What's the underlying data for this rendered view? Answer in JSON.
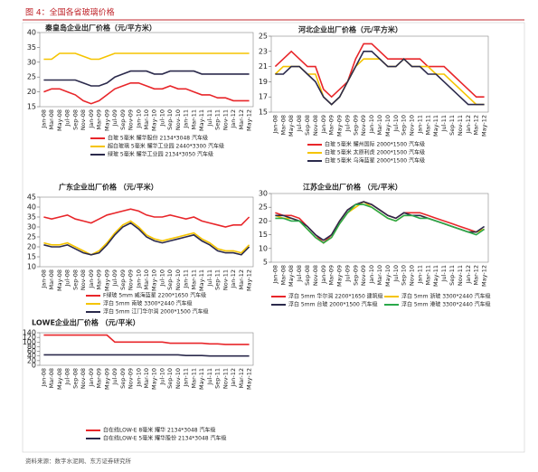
{
  "header": {
    "title": "图 4：全国各省玻璃价格"
  },
  "source": "资料来源：数字水泥网、东方证券研究所",
  "chart_data": [
    {
      "type": "line",
      "title": "秦皇岛企业出厂价格（元/平方米）",
      "categories": [
        "Jan-08",
        "Mar-08",
        "May-08",
        "Jul-08",
        "Sep-08",
        "Nov-08",
        "Jan-09",
        "Mar-09",
        "May-09",
        "Jul-09",
        "Sep-09",
        "Nov-09",
        "Jan-10",
        "Mar-10",
        "May-10",
        "Jul-10",
        "Sep-10",
        "Nov-10",
        "Jan-11",
        "Mar-11",
        "May-11",
        "Jul-11",
        "Sep-11",
        "Nov-11",
        "Jan-12",
        "Mar-12",
        "May-12"
      ],
      "ylim": [
        15,
        40
      ],
      "yticks": [
        15,
        20,
        25,
        30,
        35,
        40
      ],
      "series": [
        {
          "name": "白玻 5毫米 耀华股份 2134*3048 汽车级",
          "color": "#e8262a",
          "values": [
            20,
            21,
            21,
            20,
            19,
            17,
            16,
            17,
            19,
            21,
            22,
            23,
            23,
            22,
            21,
            21,
            22,
            21,
            21,
            20,
            19,
            19,
            18,
            18,
            17,
            17,
            17
          ]
        },
        {
          "name": "超白玻璃 5毫米 耀华工业园 2440*3300 汽车级",
          "color": "#f5c400",
          "values": [
            31,
            31,
            33,
            33,
            33,
            32,
            31,
            31,
            32,
            33,
            33,
            33,
            33,
            33,
            33,
            33,
            33,
            33,
            33,
            33,
            33,
            33,
            33,
            33,
            33,
            33,
            33
          ]
        },
        {
          "name": "绿玻 5毫米 耀华工业园 2134*3050 汽车级",
          "color": "#2b2a4c",
          "values": [
            24,
            24,
            24,
            24,
            24,
            23,
            22,
            22,
            23,
            25,
            26,
            27,
            27,
            27,
            26,
            26,
            27,
            27,
            27,
            27,
            26,
            26,
            26,
            26,
            26,
            26,
            26
          ]
        }
      ]
    },
    {
      "type": "line",
      "title": "河北企业出厂价格（元/平方米）",
      "categories": [
        "Jan-08",
        "Mar-08",
        "May-08",
        "Jul-08",
        "Sep-08",
        "Nov-08",
        "Jan-09",
        "Mar-09",
        "May-09",
        "Jul-09",
        "Sep-09",
        "Nov-09",
        "Jan-10",
        "Mar-10",
        "May-10",
        "Jul-10",
        "Sep-10",
        "Nov-10",
        "Jan-11",
        "Mar-11",
        "May-11",
        "Jul-11",
        "Sep-11",
        "Nov-11",
        "Jan-12",
        "Mar-12",
        "May-12"
      ],
      "ylim": [
        15,
        25
      ],
      "yticks": [
        15,
        17,
        19,
        21,
        23,
        25
      ],
      "series": [
        {
          "name": "白玻 5毫米 耀州国际 2000*1500 汽车级",
          "color": "#e8262a",
          "values": [
            21,
            22,
            23,
            22,
            21,
            21,
            18,
            17,
            18,
            19,
            22,
            24,
            24,
            23,
            22,
            22,
            22,
            22,
            22,
            21,
            21,
            21,
            20,
            19,
            18,
            17,
            17
          ]
        },
        {
          "name": "白玻 5毫米 太原利虎 2000*1500 汽车级",
          "color": "#f5c400",
          "values": [
            20,
            21,
            21,
            21,
            20,
            20,
            17,
            16,
            17,
            19,
            21,
            22,
            22,
            22,
            21,
            21,
            22,
            21,
            21,
            21,
            20,
            20,
            19,
            18,
            17,
            16,
            16
          ]
        },
        {
          "name": "白玻 5毫米 乌海蓝星 2000*1500 汽车级",
          "color": "#2b2a4c",
          "values": [
            20,
            20,
            21,
            21,
            20,
            19,
            17,
            16,
            17,
            19,
            21,
            23,
            23,
            22,
            21,
            21,
            22,
            21,
            21,
            20,
            20,
            19,
            18,
            17,
            16,
            16,
            16
          ]
        }
      ]
    },
    {
      "type": "line",
      "title": "广东企业出厂价格 （元/平米）",
      "categories": [
        "Jan-08",
        "Mar-08",
        "May-08",
        "Jul-08",
        "Sep-08",
        "Nov-08",
        "Jan-09",
        "Mar-09",
        "May-09",
        "Jul-09",
        "Sep-09",
        "Nov-09",
        "Jan-10",
        "Mar-10",
        "May-10",
        "Jul-10",
        "Sep-10",
        "Nov-10",
        "Jan-11",
        "Mar-11",
        "May-11",
        "Jul-11",
        "Sep-11",
        "Nov-11",
        "Jan-12",
        "Mar-12",
        "May-12"
      ],
      "ylim": [
        10,
        45
      ],
      "yticks": [
        10,
        15,
        20,
        25,
        30,
        35,
        40,
        45
      ],
      "series": [
        {
          "name": "F绿玻 5mm 威海蓝星 2200*1650 汽车级",
          "color": "#e8262a",
          "values": [
            35,
            34,
            35,
            36,
            34,
            33,
            32,
            34,
            36,
            37,
            38,
            39,
            38,
            36,
            35,
            35,
            36,
            35,
            34,
            35,
            33,
            32,
            31,
            30,
            31,
            31,
            35
          ]
        },
        {
          "name": "浮白 5mm 南玻 3300*2440 汽车级",
          "color": "#f5c400",
          "values": [
            22,
            21,
            21,
            22,
            20,
            18,
            16,
            18,
            22,
            27,
            31,
            33,
            30,
            26,
            24,
            23,
            24,
            25,
            26,
            27,
            24,
            22,
            19,
            18,
            18,
            17,
            21
          ]
        },
        {
          "name": "浮白 5mm 江门华尔润 2000*1500 汽车级",
          "color": "#2b2a4c",
          "values": [
            21,
            20,
            20,
            21,
            19,
            17,
            16,
            17,
            21,
            26,
            30,
            32,
            29,
            25,
            23,
            22,
            23,
            24,
            25,
            26,
            23,
            21,
            18,
            17,
            17,
            16,
            20
          ]
        }
      ]
    },
    {
      "type": "line",
      "title": "江苏企业出厂价格 （元/平米）",
      "categories": [
        "Jan-08",
        "Mar-08",
        "May-08",
        "Jul-08",
        "Sep-08",
        "Nov-08",
        "Jan-09",
        "Mar-09",
        "May-09",
        "Jul-09",
        "Sep-09",
        "Nov-09",
        "Jan-10",
        "Mar-10",
        "May-10",
        "Jul-10",
        "Sep-10",
        "Nov-10",
        "Jan-11",
        "Mar-11",
        "May-11",
        "Jul-11",
        "Sep-11",
        "Nov-11",
        "Jan-12",
        "Mar-12",
        "May-12"
      ],
      "ylim": [
        5,
        30
      ],
      "yticks": [
        5,
        10,
        15,
        20,
        25,
        30
      ],
      "legend_columns": 2,
      "series": [
        {
          "name": "浮白 5mm 华尔润 2200*1650 建筑级",
          "color": "#e8262a",
          "values": [
            23,
            22,
            22,
            21,
            18,
            15,
            12,
            15,
            20,
            24,
            26,
            27,
            26,
            24,
            22,
            21,
            23,
            23,
            23,
            22,
            21,
            20,
            19,
            18,
            17,
            16,
            17
          ]
        },
        {
          "name": "浮白 5mm 浙玻 3300*2440 汽车级",
          "color": "#f5c400",
          "values": [
            22,
            21,
            21,
            20,
            17,
            14,
            12,
            14,
            19,
            23,
            25,
            27,
            25,
            23,
            21,
            20,
            22,
            22,
            22,
            21,
            20,
            19,
            18,
            17,
            16,
            16,
            17
          ]
        },
        {
          "name": "浮白 5mm 台玻 2000*1500 汽车级",
          "color": "#2b2a4c",
          "values": [
            22,
            22,
            21,
            20,
            18,
            15,
            13,
            15,
            20,
            24,
            26,
            27,
            26,
            24,
            22,
            21,
            23,
            22,
            22,
            21,
            20,
            19,
            18,
            17,
            16,
            16,
            18
          ]
        },
        {
          "name": "浮白 5mm 港玻 3300*2440 汽车级",
          "color": "#2aa84a",
          "values": [
            21,
            21,
            20,
            20,
            17,
            14,
            12,
            14,
            19,
            23,
            26,
            26,
            25,
            23,
            21,
            20,
            22,
            22,
            21,
            21,
            20,
            19,
            18,
            17,
            16,
            15,
            17
          ]
        }
      ]
    },
    {
      "type": "line",
      "title": "LOWE企业出厂价格 （元/平米）",
      "categories": [
        "Jan-08",
        "Mar-08",
        "May-08",
        "Jul-08",
        "Sep-08",
        "Nov-08",
        "Jan-09",
        "Mar-09",
        "May-09",
        "Jul-09",
        "Sep-09",
        "Nov-09",
        "Jan-10",
        "Mar-10",
        "May-10",
        "Jul-10",
        "Sep-10",
        "Nov-10",
        "Jan-11",
        "Mar-11",
        "May-11",
        "Jul-11",
        "Sep-11",
        "Nov-11",
        "Jan-12",
        "Mar-12",
        "May-12"
      ],
      "ylim": [
        0,
        140
      ],
      "yticks": [
        0,
        20,
        40,
        60,
        80,
        100,
        120,
        140
      ],
      "series": [
        {
          "name": "白在线LOW-E 8毫米 耀华 2134*3048 汽车级",
          "color": "#e8262a",
          "values": [
            130,
            130,
            130,
            130,
            130,
            130,
            130,
            130,
            130,
            100,
            100,
            100,
            100,
            100,
            100,
            100,
            95,
            95,
            95,
            95,
            95,
            92,
            92,
            90,
            90,
            90,
            90
          ]
        },
        {
          "name": "白在线LOW-E 5毫米 耀华股份 2134*3048 汽车级",
          "color": "#2b2a4c",
          "values": [
            45,
            45,
            45,
            45,
            45,
            45,
            45,
            45,
            45,
            45,
            45,
            45,
            45,
            45,
            45,
            45,
            45,
            45,
            42,
            42,
            42,
            40,
            40,
            40,
            40,
            40,
            40
          ]
        }
      ]
    }
  ]
}
